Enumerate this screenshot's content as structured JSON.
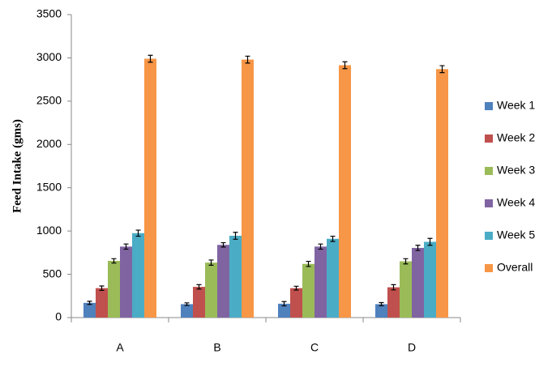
{
  "chart_data": {
    "type": "bar",
    "y_label": "Feed Intake (gms)",
    "categories": [
      "A",
      "B",
      "C",
      "D"
    ],
    "series": [
      {
        "name": "Week 1",
        "color": "#4f81bd",
        "values": [
          170,
          155,
          160,
          155
        ],
        "errors": [
          18,
          15,
          25,
          18
        ]
      },
      {
        "name": "Week 2",
        "color": "#c0504d",
        "values": [
          340,
          355,
          340,
          350
        ],
        "errors": [
          25,
          25,
          22,
          30
        ]
      },
      {
        "name": "Week 3",
        "color": "#9bbb59",
        "values": [
          655,
          635,
          620,
          650
        ],
        "errors": [
          25,
          30,
          30,
          30
        ]
      },
      {
        "name": "Week 4",
        "color": "#8064a2",
        "values": [
          820,
          840,
          820,
          805
        ],
        "errors": [
          30,
          25,
          30,
          30
        ]
      },
      {
        "name": "Week 5",
        "color": "#4bacc6",
        "values": [
          975,
          945,
          910,
          875
        ],
        "errors": [
          35,
          40,
          30,
          40
        ]
      },
      {
        "name": "Overall",
        "color": "#f79646",
        "values": [
          2990,
          2980,
          2915,
          2870
        ],
        "errors": [
          40,
          40,
          40,
          40
        ]
      }
    ],
    "ylim": [
      0,
      3500
    ],
    "yticks": [
      0,
      500,
      1000,
      1500,
      2000,
      2500,
      3000,
      3500
    ],
    "grid": false,
    "legend": "right"
  }
}
